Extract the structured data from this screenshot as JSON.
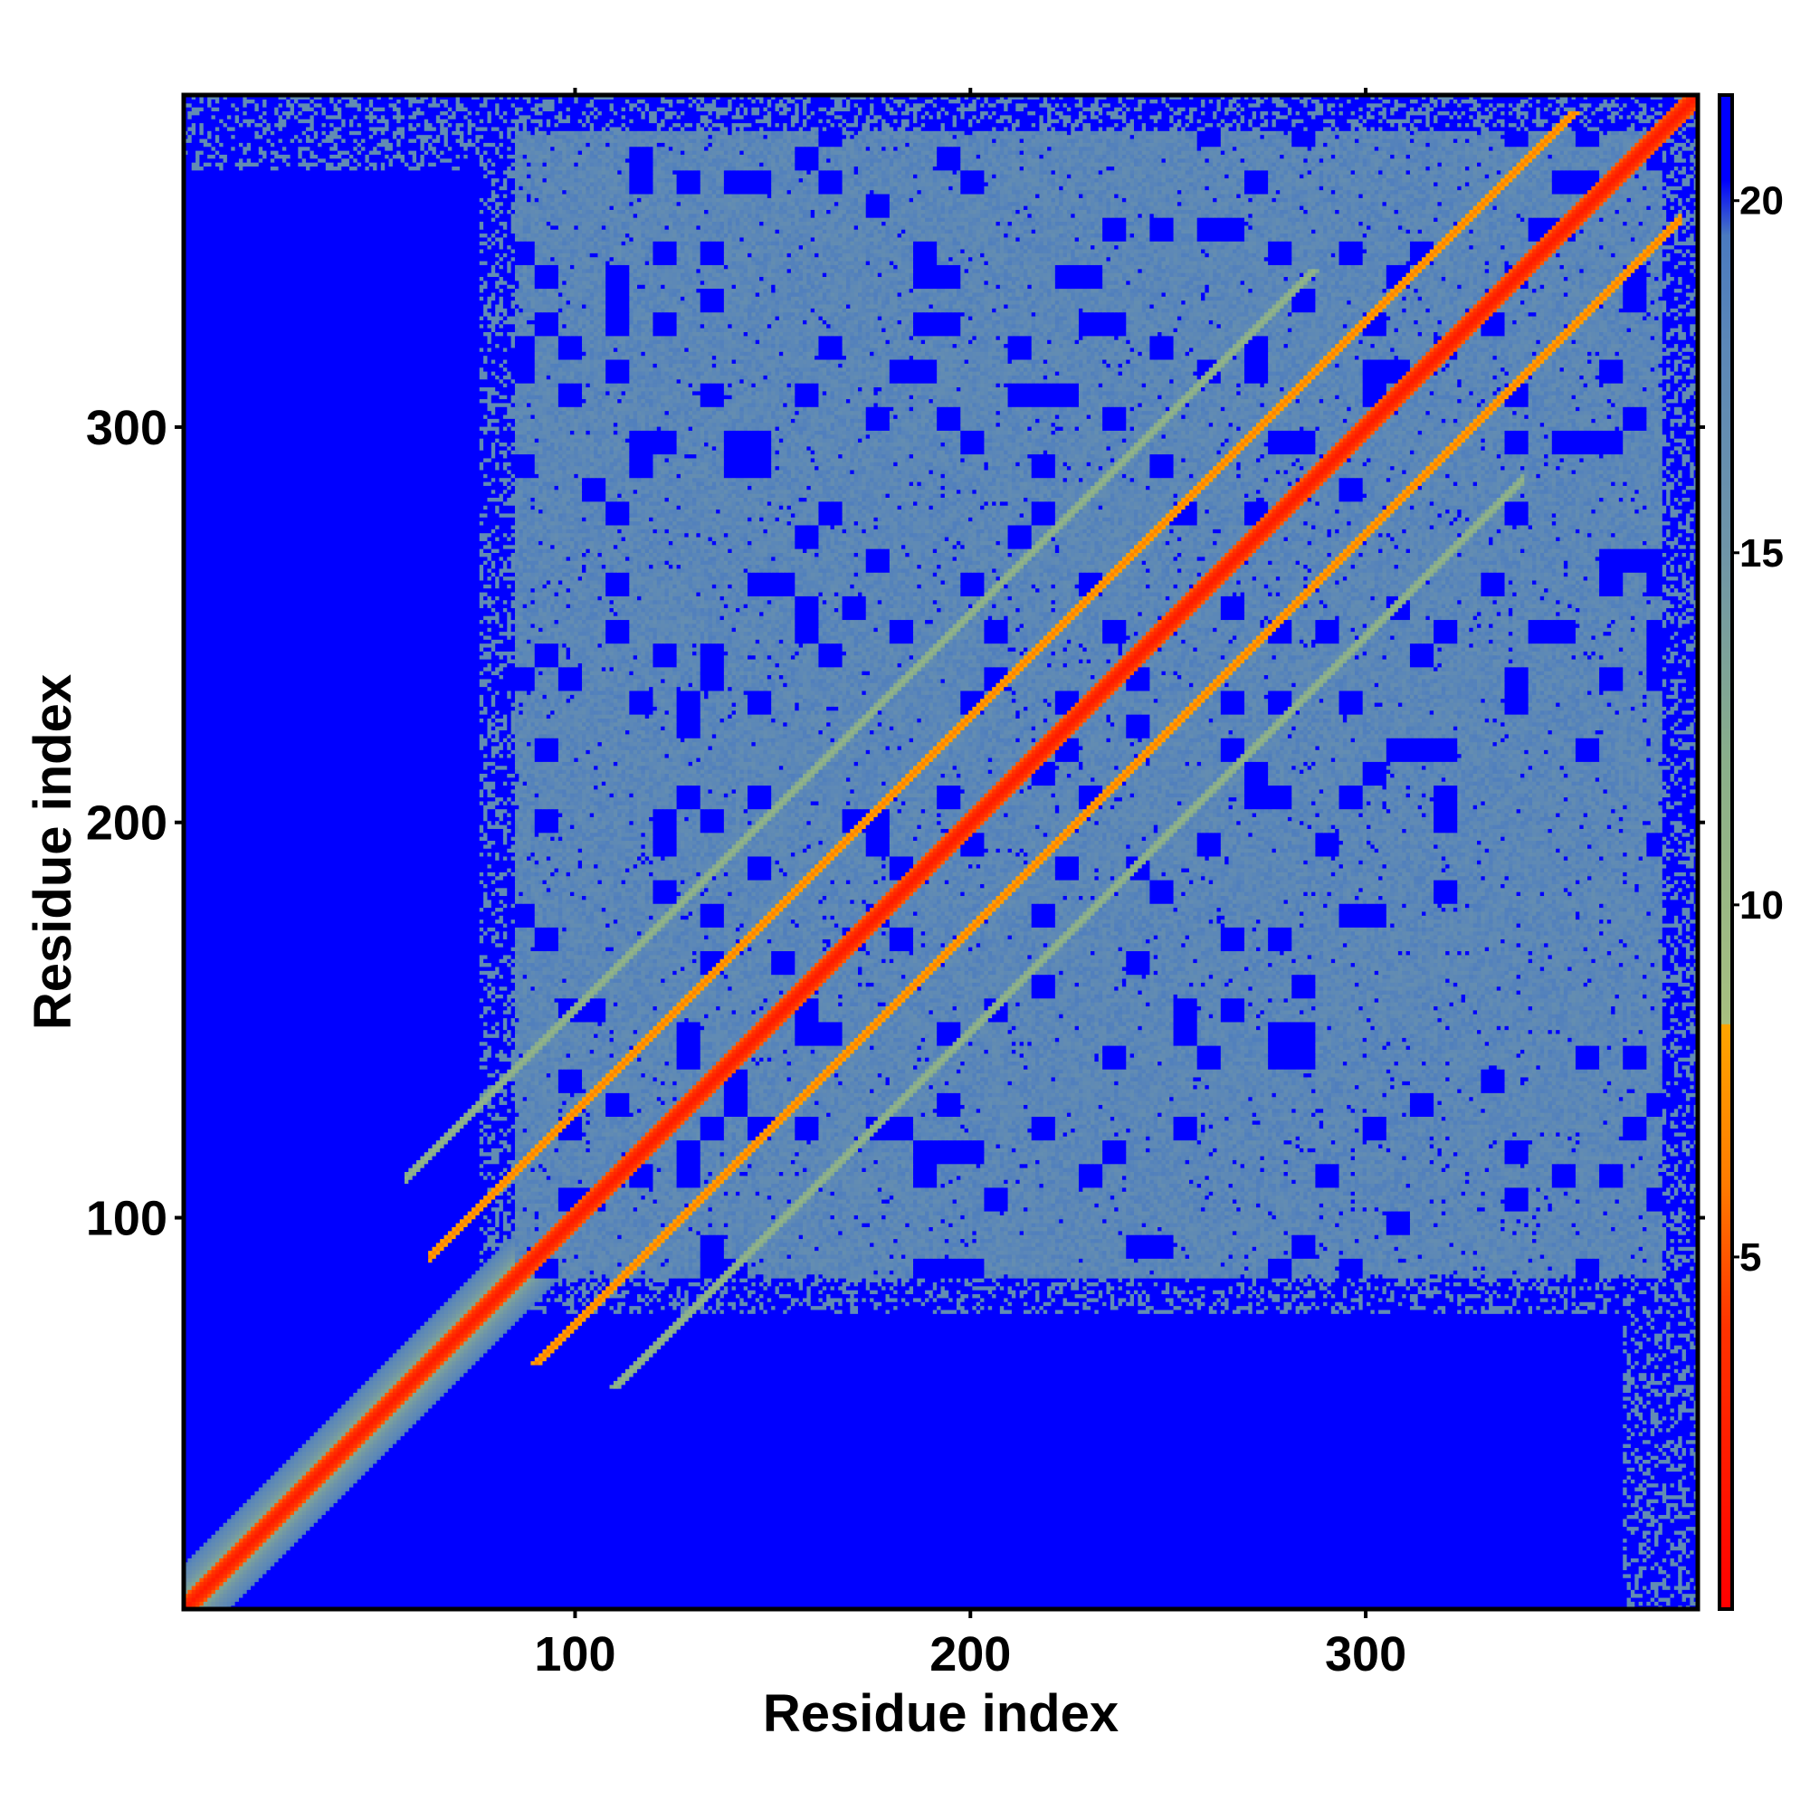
{
  "chart_data": {
    "type": "heatmap",
    "title": "",
    "xlabel": "Residue index",
    "ylabel": "Residue index",
    "xlim": [
      1,
      384
    ],
    "ylim": [
      1,
      384
    ],
    "x_ticks": [
      100,
      200,
      300
    ],
    "y_ticks": [
      100,
      200,
      300
    ],
    "colorbar": {
      "min": 0,
      "max": 21.5,
      "ticks": [
        5,
        10,
        15,
        20
      ],
      "stops": [
        {
          "value": 0,
          "color": "#ff0000"
        },
        {
          "value": 4,
          "color": "#ff3300"
        },
        {
          "value": 6,
          "color": "#ff7a00"
        },
        {
          "value": 8.3,
          "color": "#ffa500"
        },
        {
          "value": 8.31,
          "color": "#a8c080"
        },
        {
          "value": 12,
          "color": "#8aaf8a"
        },
        {
          "value": 15,
          "color": "#6f95a8"
        },
        {
          "value": 18,
          "color": "#5b87b8"
        },
        {
          "value": 19.5,
          "color": "#4a7ac0"
        },
        {
          "value": 20.3,
          "color": "#0000ff"
        },
        {
          "value": 21.5,
          "color": "#0000ff"
        }
      ]
    },
    "description_of_values": "Pairwise residue distance map (symmetric). Values near 0 along the diagonal, about 5-8 on off-diagonal bands, 10-19 within the folded core (residues ~85-375), and >=20 outside the core.",
    "core_region": {
      "start": 85,
      "end": 375
    },
    "diagonal_band": {
      "value": 2,
      "width_residues": 3
    },
    "off_diagonal_bands": [
      {
        "offset": 27,
        "value": 6.5,
        "range": [
          90,
          380
        ]
      },
      {
        "offset": -27,
        "value": 6.5,
        "range": [
          90,
          380
        ]
      },
      {
        "offset": 53,
        "value": 11,
        "range": [
          110,
          340
        ]
      },
      {
        "offset": -53,
        "value": 11,
        "range": [
          110,
          340
        ]
      }
    ],
    "colors": {
      "background": "#0000ff",
      "core": "#5b87b8",
      "diagonal": "#ff0000",
      "band": "#ff8c00",
      "plot_border": "#000000"
    }
  }
}
